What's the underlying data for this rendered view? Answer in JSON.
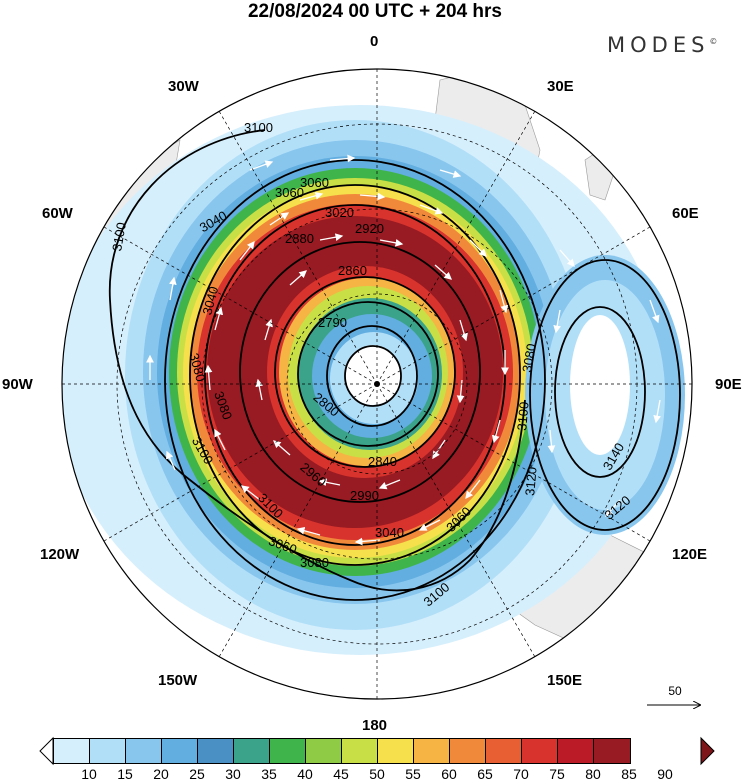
{
  "header": {
    "title": "22/08/2024  00 UTC  + 204 hrs",
    "brand": "MODES",
    "brand_mark": "©"
  },
  "map": {
    "projection": "south-polar-stereographic",
    "longitude_labels": [
      "0",
      "30E",
      "60E",
      "90E",
      "120E",
      "150E",
      "180",
      "150W",
      "120W",
      "90W",
      "60W",
      "30W"
    ],
    "contour_labels": [
      "3100",
      "3100",
      "3080",
      "3100",
      "3060",
      "3040",
      "3080",
      "3100",
      "3060",
      "3040",
      "3020",
      "2920",
      "2860",
      "2880",
      "2790",
      "2800",
      "2840",
      "2960",
      "2990",
      "3040",
      "3060",
      "3080",
      "3100",
      "3120",
      "3140",
      "3120",
      "3060",
      "3080",
      "3100"
    ],
    "reference_vector": {
      "label": "50"
    }
  },
  "colorbar": {
    "ticks": [
      "10",
      "15",
      "20",
      "25",
      "30",
      "35",
      "40",
      "45",
      "50",
      "55",
      "60",
      "65",
      "70",
      "75",
      "80",
      "85",
      "90"
    ],
    "colors": [
      "#ffffff",
      "#d6effc",
      "#b2dff8",
      "#88c6ee",
      "#62aee0",
      "#4a90c4",
      "#3aa38a",
      "#3fb44a",
      "#8fcb44",
      "#c9df46",
      "#f6e04c",
      "#f5b443",
      "#f1893b",
      "#e85f34",
      "#d8332d",
      "#bb1b27",
      "#981a22",
      "#7d1519"
    ]
  }
}
